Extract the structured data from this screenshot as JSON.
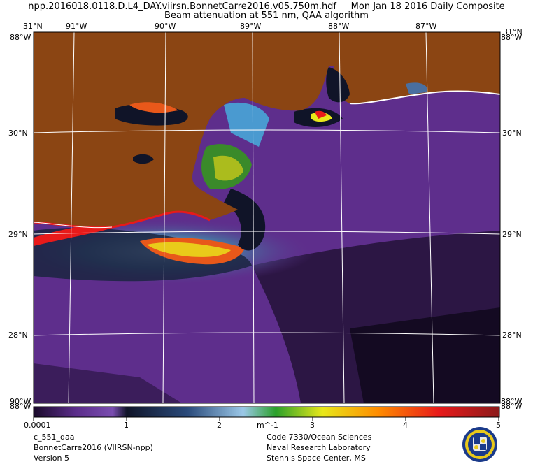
{
  "header": {
    "line1": "npp.2016018.0118.D.L4_DAY.viirsn.BonnetCarre2016.v05.750m.hdf     Mon Jan 18 2016 Daily Composite",
    "line2": "Beam attenuation at 551 nm, QAA algorithm"
  },
  "map": {
    "top_lon_labels": [
      "31°N",
      "91°W",
      "90°W",
      "89°W",
      "88°W",
      "87°W",
      "31°N"
    ],
    "bottom_lon_labels": [
      "88°W",
      "88°W"
    ],
    "corner_labels": {
      "top_left": "88°W",
      "top_right": "88°W",
      "bottom_left": "90°W",
      "bottom_right": "88°W"
    },
    "left_lat_labels": [
      "30°N",
      "29°N",
      "28°N"
    ],
    "right_lat_labels": [
      "30°N",
      "29°N",
      "28°N"
    ],
    "land_color": "#8b4513",
    "water_color": "#5e2e8c",
    "grid_color": "#ffffff"
  },
  "colorbar": {
    "tick_labels": [
      "0.0001",
      "1",
      "2",
      "m^-1",
      "3",
      "4",
      "5"
    ],
    "colors": [
      "#1a0a2a",
      "#5b2d8a",
      "#7a4db0",
      "#101428",
      "#2a4a7a",
      "#9bc8e8",
      "#2aa02a",
      "#e8e81a",
      "#ff8c00",
      "#e81a1a",
      "#8b1a1a"
    ]
  },
  "footer": {
    "left": [
      "c_551_qaa",
      "BonnetCarre2016 (VIIRSN-npp)",
      "Version 5"
    ],
    "right": [
      "Code 7330/Ocean Sciences",
      "Naval Research Laboratory",
      "Stennis Space Center, MS"
    ]
  }
}
